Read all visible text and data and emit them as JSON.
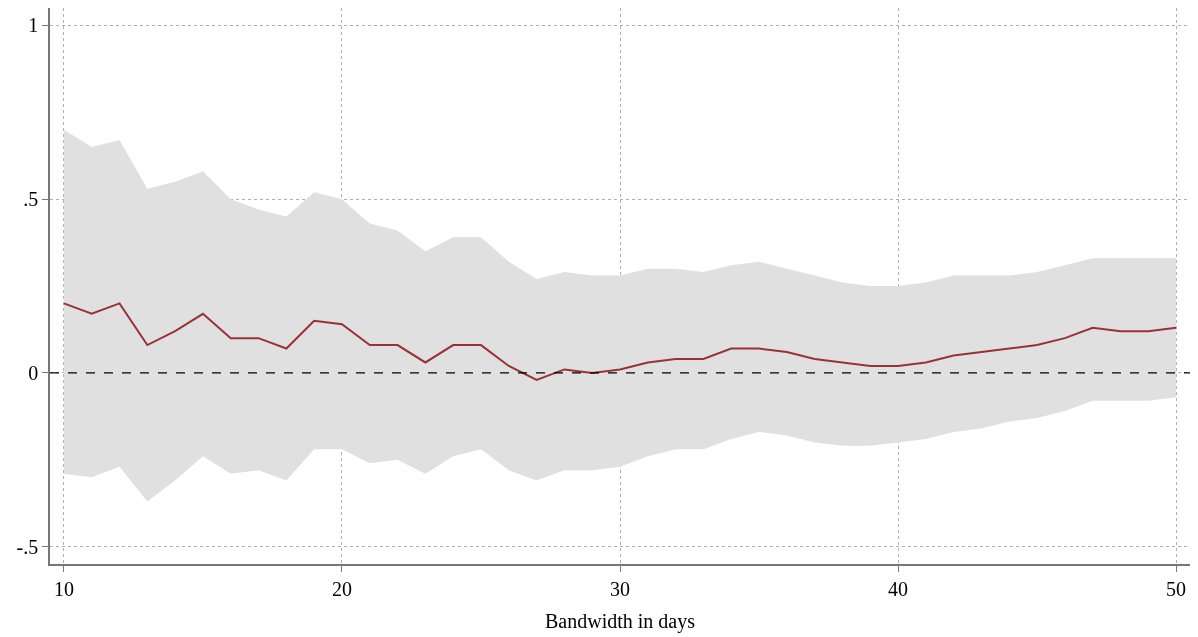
{
  "chart_data": {
    "type": "line",
    "xlabel": "Bandwidth in days",
    "x": [
      10,
      11,
      12,
      13,
      14,
      15,
      16,
      17,
      18,
      19,
      20,
      21,
      22,
      23,
      24,
      25,
      26,
      27,
      28,
      29,
      30,
      31,
      32,
      33,
      34,
      35,
      36,
      37,
      38,
      39,
      40,
      41,
      42,
      43,
      44,
      45,
      46,
      47,
      48,
      49,
      50
    ],
    "series": [
      {
        "color": "#983238",
        "values": [
          0.2,
          0.17,
          0.2,
          0.08,
          0.12,
          0.17,
          0.1,
          0.1,
          0.07,
          0.15,
          0.14,
          0.08,
          0.08,
          0.03,
          0.08,
          0.08,
          0.02,
          -0.02,
          0.01,
          0.0,
          0.01,
          0.03,
          0.04,
          0.04,
          0.07,
          0.07,
          0.06,
          0.04,
          0.03,
          0.02,
          0.02,
          0.03,
          0.05,
          0.06,
          0.07,
          0.08,
          0.1,
          0.13,
          0.12,
          0.12,
          0.13
        ],
        "upper": [
          0.7,
          0.65,
          0.67,
          0.53,
          0.55,
          0.58,
          0.5,
          0.47,
          0.45,
          0.52,
          0.5,
          0.43,
          0.41,
          0.35,
          0.39,
          0.39,
          0.32,
          0.27,
          0.29,
          0.28,
          0.28,
          0.3,
          0.3,
          0.29,
          0.31,
          0.32,
          0.3,
          0.28,
          0.26,
          0.25,
          0.25,
          0.26,
          0.28,
          0.28,
          0.28,
          0.29,
          0.31,
          0.33,
          0.33,
          0.33,
          0.33
        ],
        "lower": [
          -0.29,
          -0.3,
          -0.27,
          -0.37,
          -0.31,
          -0.24,
          -0.29,
          -0.28,
          -0.31,
          -0.22,
          -0.22,
          -0.26,
          -0.25,
          -0.29,
          -0.24,
          -0.22,
          -0.28,
          -0.31,
          -0.28,
          -0.28,
          -0.27,
          -0.24,
          -0.22,
          -0.22,
          -0.19,
          -0.17,
          -0.18,
          -0.2,
          -0.21,
          -0.21,
          -0.2,
          -0.19,
          -0.17,
          -0.16,
          -0.14,
          -0.13,
          -0.11,
          -0.08,
          -0.08,
          -0.08,
          -0.07
        ]
      }
    ],
    "xlim": [
      9.5,
      50.5
    ],
    "xticks": [
      10,
      20,
      30,
      40,
      50
    ],
    "ylim": [
      -0.55,
      1.05
    ],
    "yticks": [
      {
        "value": -0.5,
        "label": "-.5"
      },
      0,
      {
        "value": 0.5,
        "label": ".5"
      },
      1
    ],
    "ref_lines": [
      {
        "axis": "y",
        "value": 0,
        "color": "#000000",
        "line_style": "dashed"
      }
    ],
    "grid": true,
    "marker": "none",
    "line_style": "solid"
  }
}
